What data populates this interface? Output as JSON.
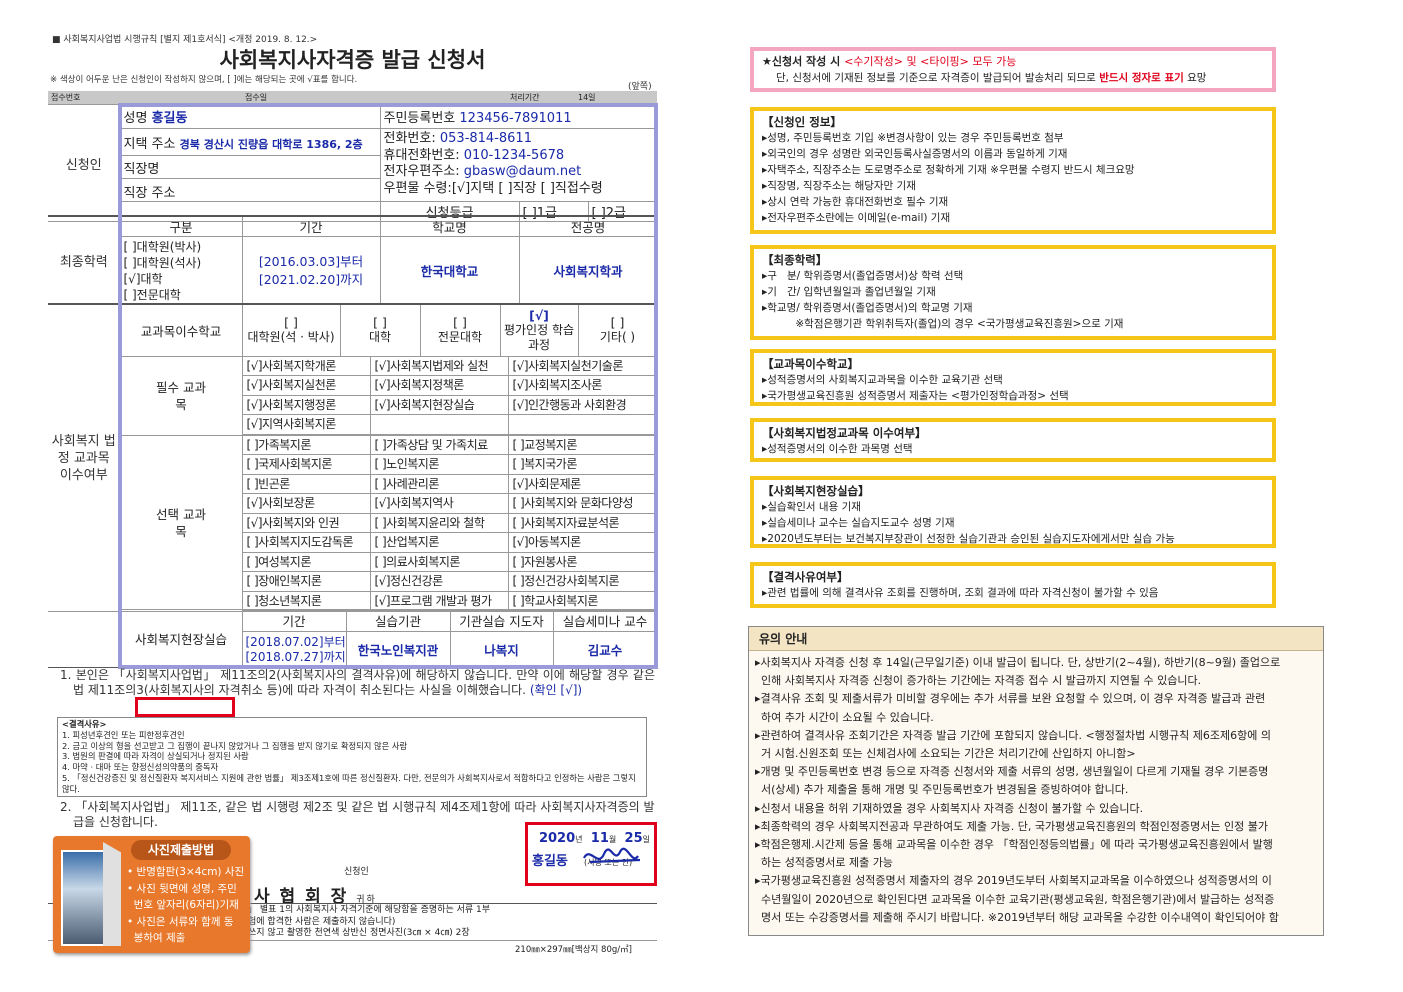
{
  "form": {
    "law_ref": "■ 사회복지사업법 시행규칙 [별지 제1호서식] <개정 2019. 8. 12.>",
    "title": "사회복지사자격증 발급 신청서",
    "note": "※ 색상이 어두운 난은 신청인이 작성하지 않으며, [ ]에는 해당되는 곳에 √표를 합니다.",
    "page_side": "(앞쪽)",
    "receipt_no_label": "접수번호",
    "receipt_date_label": "접수일",
    "processing_label": "처리기간",
    "processing_value": "14일",
    "applicant": {
      "section": "신청인",
      "name_label": "성명",
      "name": "홍길동",
      "home_addr_label": "지택 주소",
      "home_addr": "경북 경산시 진량읍 대학로 1386, 2층",
      "work_name_label": "직장명",
      "work_addr_label": "직장 주소",
      "rrn_label": "주민등록번호",
      "rrn": "123456-7891011",
      "phone_label": "전화번호:",
      "phone": "053-814-8611",
      "mobile_label": "휴대전화번호:",
      "mobile": "010-1234-5678",
      "email_label": "전자우편주소:",
      "email": "gbasw@daum.net",
      "mail_label": "우편물 수령:",
      "mail_options": [
        "[√]지택",
        "[ ]직장",
        "[ ]직접수령"
      ],
      "grade_label": "신청등급",
      "grade_options": [
        "[ ]1급",
        "[ ]2급"
      ]
    },
    "education": {
      "section": "최종학력",
      "headers": [
        "구분",
        "기간",
        "학교명",
        "전공명"
      ],
      "levels": [
        "[ ]대학원(박사)",
        "[ ]대학원(석사)",
        "[√]대학",
        "[ ]전문대학"
      ],
      "from": "[2016.03.03]부터",
      "to": "[2021.02.20]까지",
      "school": "한국대학교",
      "major": "사회복지학과"
    },
    "course_school": {
      "label": "교과목이수학교",
      "options": [
        {
          "mark": "[ ]",
          "label": "대학원(석 · 박사)"
        },
        {
          "mark": "[ ]",
          "label": "대학"
        },
        {
          "mark": "[ ]",
          "label": "전문대학"
        },
        {
          "mark": "[√]",
          "label": "평가인정 학습과정"
        },
        {
          "mark": "[ ]",
          "label": "기타(       )"
        }
      ]
    },
    "legal_section": "사회복지 법정 교과목 이수여부",
    "required": {
      "label": "필수 교과목",
      "items": [
        "[√]사회복지학개론",
        "[√]사회복지법제와 실천",
        "[√]사회복지실천기술론",
        "[√]사회복지실천론",
        "[√]사회복지정책론",
        "[√]사회복지조사론",
        "[√]사회복지행정론",
        "[√]사회복지현장실습",
        "[√]인간행동과 사회환경",
        "[√]지역사회복지론",
        "",
        ""
      ]
    },
    "elective": {
      "label": "선택 교과목",
      "items": [
        "[ ]가족복지론",
        "[ ]가족상담 및 가족치료",
        "[ ]교정복지론",
        "[ ]국제사회복지론",
        "[ ]노인복지론",
        "[ ]복지국가론",
        "[ ]빈곤론",
        "[ ]사례관리론",
        "[√]사회문제론",
        "[√]사회보장론",
        "[√]사회복지역사",
        "[ ]사회복지와 문화다양성",
        "[√]사회복지와 인권",
        "[ ]사회복지윤리와 철학",
        "[ ]사회복지자료분석론",
        "[ ]사회복지지도감독론",
        "[ ]산업복지론",
        "[√]아동복지론",
        "[ ]여성복지론",
        "[ ]의료사회복지론",
        "[ ]자원봉사론",
        "[ ]장애인복지론",
        "[√]정신건강론",
        "[ ]정신건강사회복지론",
        "[ ]청소년복지론",
        "[√]프로그램 개발과 평가",
        "[ ]학교사회복지론"
      ]
    },
    "practicum": {
      "label": "사회복지현장실습",
      "headers": [
        "기간",
        "실습기관",
        "기관실습 지도자",
        "실습세미나 교수"
      ],
      "from": "[2018.07.02]부터",
      "to": "[2018.07.27]까지",
      "agency": "한국노인복지관",
      "supervisor": "나복지",
      "professor": "김교수"
    },
    "declaration1": "1. 본인은 「사회복지사업법」 제11조의2(사회복지사의 결격사유)에 해당하지 않습니다. 만약 이에 해당할 경우 같은 법 제11조의3(사회복지사의 자격취소 등)에 따라 자격이 취소된다는 사실을 이해했습니다.",
    "confirm": "(확인 [√])",
    "disq": {
      "title": "<결격사유>",
      "items": [
        "1. 피성년후견인 또는 피한정후견인",
        "2. 금고 이상의 형을 선고받고 그 집행이 끝나지 않았거나 그 집행을 받지 않기로 확정되지 않은 사람",
        "3. 법원의 판결에 따라 자격이 상실되거나 정지된 사람",
        "4. 마약 · 대마 또는 향정신성의약품의 중독자",
        "5. 「정신건강증진 및 정신질환자 복지서비스 지원에 관한 법률」 제3조제1호에 따른 정신질환자. 다만, 전문의가 사회복지사로서 적합하다고 인정하는 사람은 그렇지 않다."
      ]
    },
    "declaration2": "2. 「사회복지사업법」 제11조, 같은 법 시행령 제2조 및 같은 법 시행규칙 제4조제1항에 따라 사회복지사자격증의 발급을 신청합니다.",
    "date": {
      "year": "2020",
      "year_unit": "년",
      "month": "11",
      "month_unit": "월",
      "day": "25",
      "day_unit": "일"
    },
    "applicant_sign_label": "신청인",
    "signer_name": "홍길동",
    "sign_note": "(서명 또는 인)",
    "recipient": "사 협 회 장",
    "recipient_suffix": "귀하",
    "attachments": [
      "」 별표 1의 사회복지사 자격기준에 해당함을 증명하는 서류 1부",
      "험에 합격한 사람은 제출하지 않습니다)",
      "쓰지 않고 촬영한 천연색 상반신 정면사진(3㎝ × 4㎝) 2장"
    ],
    "paper": "210㎜×297㎜[백상지 80g/㎡]"
  },
  "photo_guide": {
    "title": "사진제출방법",
    "items": [
      "• 반명함판(3×4cm) 사진",
      "• 사진 뒷면에 성명, 주민",
      "  번호 앞자리(6자리)기재",
      "• 사진은 서류와 함께 동",
      "  봉하여 제출"
    ]
  },
  "guide": {
    "top": {
      "line1_prefix": "★신청서 작성 시 ",
      "line1_red": "<수기작성> 및 <타이핑> 모두 가능",
      "line2_prefix": "단, 신청서에 기재된 정보를 기준으로 자격증이 발급되어 발송처리 되므로 ",
      "line2_red": "반드시 정자로 표기",
      "line2_suffix": " 요망"
    },
    "boxes": [
      {
        "title": "【신청인 정보】",
        "lines": [
          "▸성명, 주민등록번호 기입 ※변경사항이 있는 경우 주민등록번호 첨부",
          "▸외국인의 경우 성명란 외국인등록사실증명서의 이름과 동일하게 기재",
          "▸자택주소, 직장주소는 도로명주소로 정확하게 기재 ※우편물 수령지 반드시 체크요망",
          "▸직장명, 직장주소는 해당자만 기재",
          "▸상시 연락 가능한 휴대전화번호 필수 기재",
          "▸전자우편주소란에는 이메일(e-mail) 기재"
        ]
      },
      {
        "title": "【최종학력】",
        "lines": [
          "▸구   분/ 학위증명서(졸업증명서)상 학력 선택",
          "▸기   간/ 입학년월일과 졸업년월일 기재",
          "▸학교명/ 학위증명서(졸업증명서)의 학교명 기재",
          "          ※학점은행기관 학위취득자(졸업)의 경우 <국가평생교육진흥원>으로 기재"
        ]
      },
      {
        "title": "【교과목이수학교】",
        "lines": [
          "▸성적증명서의 사회복지교과목을 이수한 교육기관 선택",
          "▸국가평생교육진흥원 성적증명서 제출자는 <평가인정학습과정> 선택"
        ]
      },
      {
        "title": "【사회복지법정교과목 이수여부】",
        "lines": [
          "▸성적증명서의 이수한 과목명 선택"
        ]
      },
      {
        "title": "【사회복지현장실습】",
        "lines": [
          "▸실습확인서 내용 기재",
          "▸실습세미나 교수는 실습지도교수 성명 기재",
          "▸2020년도부터는 보건복지부장관이 선정한 실습기관과 승인된 실습지도자에게서만 실습 가능"
        ]
      },
      {
        "title": "【결격사유여부】",
        "lines": [
          "▸관련 법률에 의해 결격사유 조회를 진행하며, 조회 결과에 따라 자격신청이 불가할 수 있음"
        ]
      }
    ],
    "notice": {
      "title": "유의 안내",
      "lines": [
        "▸사회복지사 자격증 신청 후 14일(근무일기준) 이내 발급이 됩니다. 단, 상반기(2~4월), 하반기(8~9월) 졸업으로",
        "인해 사회복지사 자격증 신청이 증가하는 기간에는 자격증 접수 시 발급까지 지연될 수 있습니다.",
        "▸결격사유 조회 및 제출서류가 미비할 경우에는 추가 서류를 보완 요청할 수 있으며, 이 경우 자격증 발급과 관련",
        "하여 추가 시간이 소요될 수 있습니다.",
        "▸관련하여 결격사유 조회기간은 자격증 발급 기간에 포함되지 않습니다. <행정절차법 시행규칙 제6조제6항에 의",
        "거 시험.신원조회 또는 신체검사에 소요되는 기간은 처리기간에 산입하지 아니함>",
        "▸개명 및 주민등록번호 변경 등으로 자격증 신청서와 제출 서류의 성명, 생년월일이 다르게 기재될 경우 기본증명",
        "서(상세) 추가 제출을 통해 개명 및 주민등록번호가 변경됨을 증빙하여야 합니다.",
        "▸신청서 내용을 허위 기재하였을 경우 사회복지사 자격증 신청이 불가할 수 있습니다.",
        "▸최종학력의 경우 사회복지전공과 무관하여도 제출 가능. 단, 국가평생교육진흥원의 학점인정증명서는 인정 불가",
        "▸학점은행제.시간제 등을 통해 교과목을 이수한 경우 「학점인정등의법률」에 따라 국가평생교육진흥원에서 발행",
        "하는 성적증명서로 제출 가능",
        "▸국가평생교육진흥원 성적증명서 제출자의 경우 2019년도부터 사회복지교과목을 이수하였으나 성적증명서의 이",
        "수년월일이 2020년으로 확인된다면 교과목을 이수한 교육기관(평생교육원, 학점은행기관)에서 발급하는 성적증",
        "명서 또는 수강증명서를 제출해 주시기 바랍니다. ※2019년부터 해당 교과목을 수강한 이수내역이 확인되어야 함"
      ]
    }
  },
  "colors": {
    "frame": "#9a9ad8",
    "highlight_red": "#e0001b",
    "guide_yellow": "#f5c518",
    "guide_pink": "#f4a6c0",
    "photo_orange": "#e8792c",
    "value_blue": "#1a2aa8"
  }
}
